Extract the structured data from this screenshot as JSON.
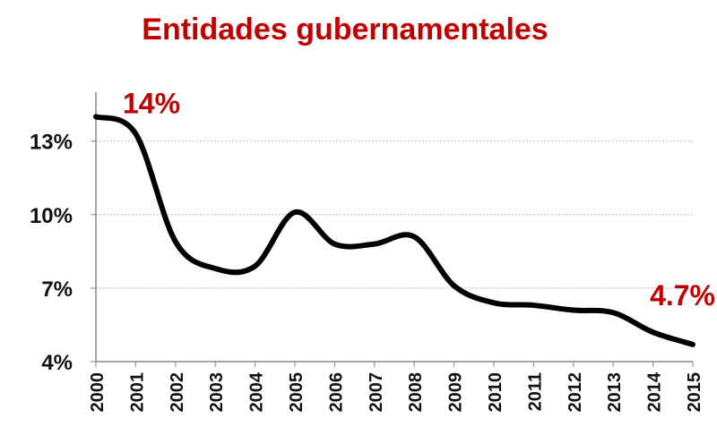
{
  "chart_data": {
    "type": "line",
    "title": "Entidades gubernamentales",
    "categories": [
      "2000",
      "2001",
      "2002",
      "2003",
      "2004",
      "2005",
      "2006",
      "2007",
      "2008",
      "2009",
      "2010",
      "2011",
      "2012",
      "2013",
      "2014",
      "2015"
    ],
    "values": [
      14,
      13.3,
      8.9,
      7.8,
      7.9,
      10.1,
      8.8,
      8.8,
      9.1,
      7.1,
      6.4,
      6.3,
      6.1,
      6.0,
      5.2,
      4.7
    ],
    "value_labels": [
      "14%",
      null,
      null,
      null,
      null,
      null,
      null,
      null,
      null,
      null,
      null,
      null,
      null,
      null,
      null,
      "4.7%"
    ],
    "color": "#000000",
    "label_color": "#c00000",
    "ylim": [
      4,
      15
    ],
    "yticks": [
      {
        "value": 4,
        "label": "4%"
      },
      {
        "value": 7,
        "label": "7%"
      },
      {
        "value": 10,
        "label": "10%"
      },
      {
        "value": 13,
        "label": "13%"
      }
    ],
    "grid": true
  }
}
